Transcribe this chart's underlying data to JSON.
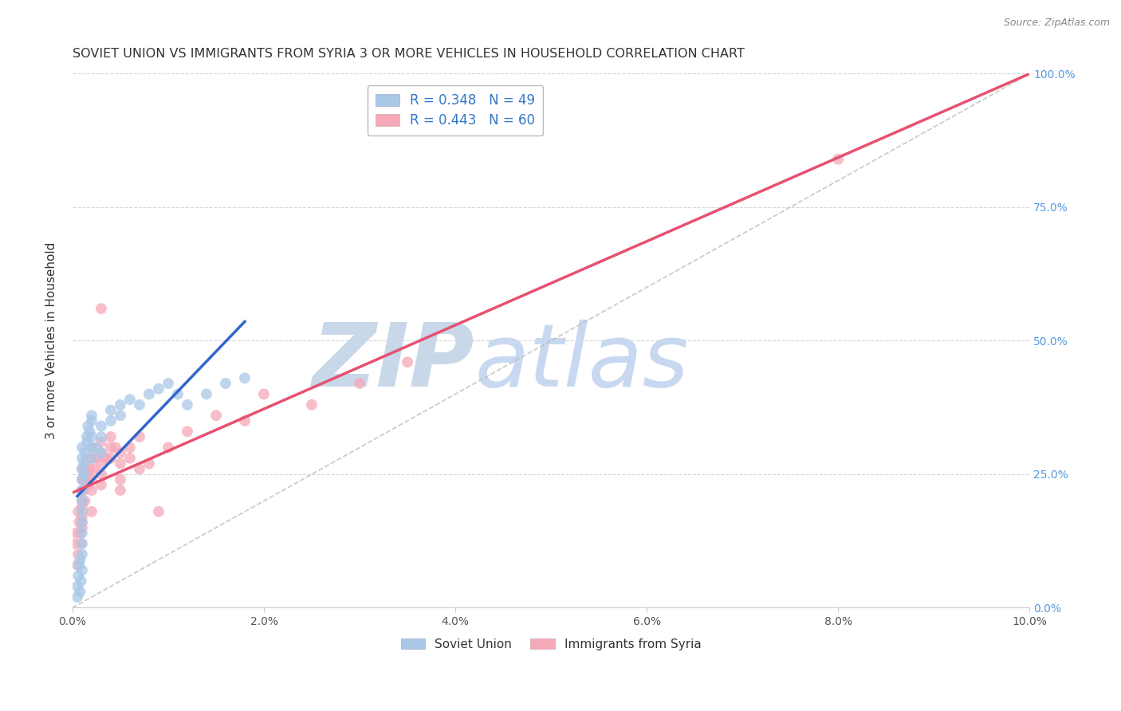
{
  "title": "SOVIET UNION VS IMMIGRANTS FROM SYRIA 3 OR MORE VEHICLES IN HOUSEHOLD CORRELATION CHART",
  "source": "Source: ZipAtlas.com",
  "ylabel": "3 or more Vehicles in Household",
  "xlim": [
    0.0,
    0.1
  ],
  "ylim": [
    0.0,
    1.0
  ],
  "xticks": [
    0.0,
    0.02,
    0.04,
    0.06,
    0.08,
    0.1
  ],
  "xtick_labels": [
    "0.0%",
    "2.0%",
    "4.0%",
    "6.0%",
    "8.0%",
    "10.0%"
  ],
  "yticks": [
    0.0,
    0.25,
    0.5,
    0.75,
    1.0
  ],
  "ytick_labels_right": [
    "0.0%",
    "25.0%",
    "50.0%",
    "75.0%",
    "100.0%"
  ],
  "grid_color": "#cccccc",
  "background_color": "#ffffff",
  "soviet_color": "#a8c8e8",
  "syria_color": "#f5a8b8",
  "soviet_line_color": "#3366cc",
  "syria_line_color": "#e85070",
  "diag_color": "#bbbbbb",
  "legend_soviet_label": "R = 0.348   N = 49",
  "legend_syria_label": "R = 0.443   N = 60",
  "soviet_x": [
    0.0005,
    0.0005,
    0.0006,
    0.0007,
    0.0008,
    0.0008,
    0.0009,
    0.001,
    0.001,
    0.001,
    0.001,
    0.001,
    0.001,
    0.001,
    0.001,
    0.001,
    0.001,
    0.001,
    0.001,
    0.0012,
    0.0012,
    0.0013,
    0.0015,
    0.0015,
    0.0016,
    0.0018,
    0.002,
    0.002,
    0.002,
    0.002,
    0.002,
    0.0025,
    0.003,
    0.003,
    0.003,
    0.004,
    0.004,
    0.005,
    0.005,
    0.006,
    0.007,
    0.008,
    0.009,
    0.01,
    0.011,
    0.012,
    0.014,
    0.016,
    0.018
  ],
  "soviet_y": [
    0.02,
    0.04,
    0.06,
    0.08,
    0.09,
    0.03,
    0.05,
    0.07,
    0.1,
    0.12,
    0.14,
    0.16,
    0.18,
    0.2,
    0.22,
    0.24,
    0.26,
    0.28,
    0.3,
    0.25,
    0.27,
    0.29,
    0.31,
    0.32,
    0.34,
    0.33,
    0.28,
    0.3,
    0.32,
    0.35,
    0.36,
    0.3,
    0.29,
    0.32,
    0.34,
    0.35,
    0.37,
    0.36,
    0.38,
    0.39,
    0.38,
    0.4,
    0.41,
    0.42,
    0.4,
    0.38,
    0.4,
    0.42,
    0.43
  ],
  "syria_x": [
    0.0003,
    0.0004,
    0.0005,
    0.0006,
    0.0006,
    0.0007,
    0.0008,
    0.0009,
    0.001,
    0.001,
    0.001,
    0.001,
    0.001,
    0.001,
    0.001,
    0.001,
    0.0012,
    0.0012,
    0.0013,
    0.0015,
    0.0015,
    0.0016,
    0.0018,
    0.002,
    0.002,
    0.002,
    0.002,
    0.002,
    0.0022,
    0.0025,
    0.003,
    0.003,
    0.003,
    0.003,
    0.003,
    0.0035,
    0.004,
    0.004,
    0.004,
    0.0045,
    0.005,
    0.005,
    0.005,
    0.005,
    0.006,
    0.006,
    0.007,
    0.007,
    0.008,
    0.009,
    0.01,
    0.012,
    0.015,
    0.018,
    0.02,
    0.025,
    0.03,
    0.035,
    0.08,
    0.003
  ],
  "syria_y": [
    0.12,
    0.14,
    0.08,
    0.1,
    0.18,
    0.16,
    0.14,
    0.12,
    0.15,
    0.17,
    0.19,
    0.2,
    0.22,
    0.24,
    0.16,
    0.26,
    0.22,
    0.24,
    0.2,
    0.28,
    0.25,
    0.23,
    0.26,
    0.24,
    0.28,
    0.3,
    0.22,
    0.18,
    0.26,
    0.28,
    0.25,
    0.27,
    0.29,
    0.31,
    0.23,
    0.28,
    0.3,
    0.32,
    0.28,
    0.3,
    0.27,
    0.29,
    0.22,
    0.24,
    0.3,
    0.28,
    0.26,
    0.32,
    0.27,
    0.18,
    0.3,
    0.33,
    0.36,
    0.35,
    0.4,
    0.38,
    0.42,
    0.46,
    0.84,
    0.56
  ],
  "watermark_zip": "ZIP",
  "watermark_atlas": "atlas",
  "watermark_zip_color": "#c8d8e8",
  "watermark_atlas_color": "#c8d8f0",
  "watermark_fontsize": 80
}
